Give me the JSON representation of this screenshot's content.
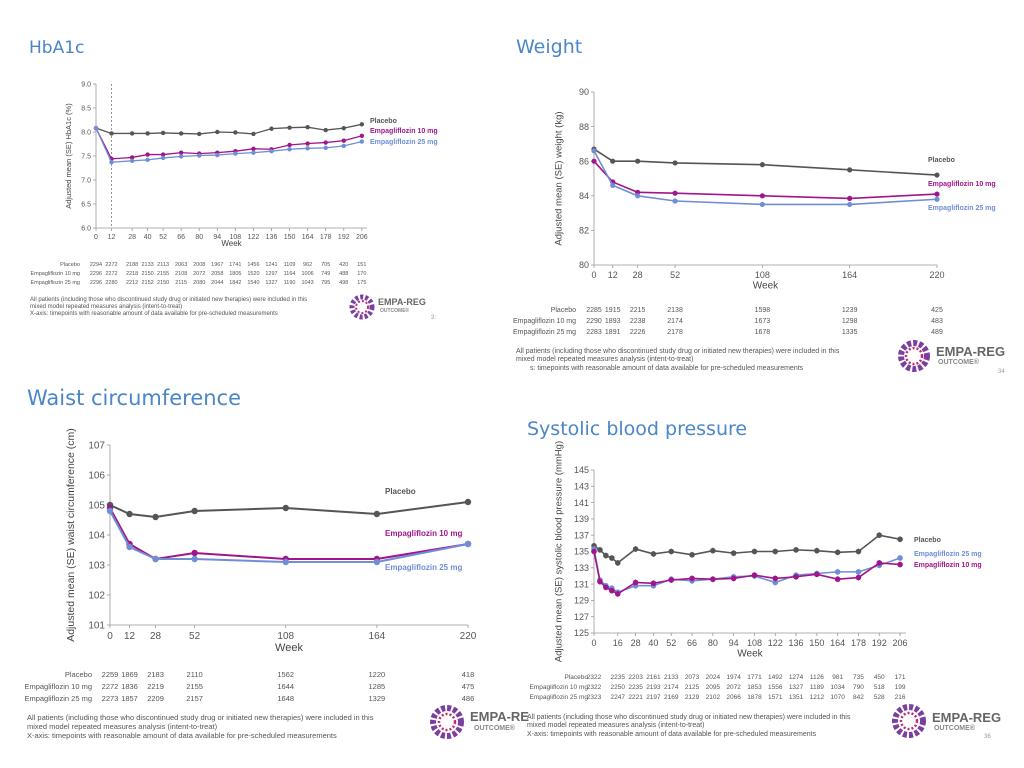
{
  "colors": {
    "placebo": "#555555",
    "empa10": "#a0158a",
    "empa25": "#6f8ed6",
    "title": "#4a86c8"
  },
  "chart_data": [
    {
      "id": "hba1c",
      "type": "line",
      "title": "HbA1c",
      "xlabel": "Week",
      "ylabel": "Adjusted mean (SE) HbA1c (%)",
      "xlim": [
        0,
        210
      ],
      "ylim": [
        6.0,
        9.0
      ],
      "yticks": [
        "6.0",
        "6.5",
        "7.0",
        "7.5",
        "8.0",
        "8.5",
        "9.0"
      ],
      "xticks": [
        "0",
        "12",
        "28",
        "40",
        "52",
        "66",
        "80",
        "94",
        "108",
        "122",
        "136",
        "150",
        "164",
        "178",
        "192",
        "206"
      ],
      "x": [
        0,
        12,
        28,
        40,
        52,
        66,
        80,
        94,
        108,
        122,
        136,
        150,
        164,
        178,
        192,
        206
      ],
      "series": [
        {
          "name": "Placebo",
          "values": [
            8.08,
            7.97,
            7.97,
            7.97,
            7.98,
            7.97,
            7.96,
            8.0,
            7.99,
            7.96,
            8.07,
            8.09,
            8.1,
            8.04,
            8.08,
            8.16
          ]
        },
        {
          "name": "Empagliflozin 10 mg",
          "values": [
            8.08,
            7.44,
            7.47,
            7.53,
            7.53,
            7.57,
            7.55,
            7.57,
            7.6,
            7.65,
            7.64,
            7.73,
            7.76,
            7.78,
            7.82,
            7.92
          ]
        },
        {
          "name": "Empagliflozin 25 mg",
          "values": [
            8.08,
            7.37,
            7.4,
            7.42,
            7.46,
            7.49,
            7.51,
            7.52,
            7.55,
            7.57,
            7.6,
            7.64,
            7.66,
            7.67,
            7.71,
            7.8
          ]
        }
      ],
      "n_table": {
        "labels": [
          "Placebo",
          "Empagliflozin 10 mg",
          "Empagliflozin 25 mg"
        ],
        "rows": [
          [
            "2294",
            "2272",
            "2188",
            "2133",
            "2113",
            "2063",
            "2008",
            "1967",
            "1741",
            "1456",
            "1241",
            "1109",
            "962",
            "705",
            "420",
            "151"
          ],
          [
            "2296",
            "2272",
            "2218",
            "2150",
            "2155",
            "2108",
            "2072",
            "2058",
            "1805",
            "1520",
            "1297",
            "1164",
            "1006",
            "749",
            "488",
            "170"
          ],
          [
            "2296",
            "2280",
            "2212",
            "2152",
            "2150",
            "2115",
            "2080",
            "2044",
            "1842",
            "1540",
            "1327",
            "1190",
            "1043",
            "795",
            "498",
            "175"
          ]
        ]
      },
      "notes": [
        "All patients (including those who discontinued study drug or initiated new therapies) were included in this",
        "mixed model repeated measures analysis (intent-to-treat)",
        "X-axis: timepoints with reasonable amount of data available for pre-scheduled measurements"
      ],
      "page_number": "3:"
    },
    {
      "id": "weight",
      "type": "line",
      "title": "Weight",
      "xlabel": "Week",
      "ylabel": "Adjusted mean (SE) weight (kg)",
      "xlim": [
        0,
        220
      ],
      "ylim": [
        80,
        90
      ],
      "yticks": [
        "80",
        "82",
        "84",
        "86",
        "88",
        "90"
      ],
      "xticks": [
        "0",
        "12",
        "28",
        "52",
        "108",
        "164",
        "220"
      ],
      "x": [
        0,
        12,
        28,
        52,
        108,
        164,
        220
      ],
      "series": [
        {
          "name": "Placebo",
          "values": [
            86.7,
            86.0,
            86.0,
            85.9,
            85.8,
            85.5,
            85.2
          ]
        },
        {
          "name": "Empagliflozin 10 mg",
          "values": [
            86.0,
            84.8,
            84.2,
            84.15,
            84.0,
            83.85,
            84.1
          ]
        },
        {
          "name": "Empagliflozin 25 mg",
          "values": [
            86.6,
            84.6,
            84.0,
            83.7,
            83.5,
            83.5,
            83.8
          ]
        }
      ],
      "n_table": {
        "labels": [
          "Placebo",
          "Empagliflozin 10 mg",
          "Empagliflozin 25 mg"
        ],
        "rows": [
          [
            "2285",
            "1915",
            "2215",
            "2138",
            "1598",
            "1239",
            "425"
          ],
          [
            "2290",
            "1893",
            "2238",
            "2174",
            "1673",
            "1298",
            "483"
          ],
          [
            "2283",
            "1891",
            "2226",
            "2178",
            "1678",
            "1335",
            "489"
          ]
        ]
      },
      "notes": [
        "All patients (including those who discontinued study drug or initiated new therapies) were included in this",
        "mixed model repeated measures analysis (intent-to-treat)",
        "s: timepoints with reasonable amount of data available for pre-scheduled measurements"
      ],
      "page_number": "34"
    },
    {
      "id": "waist",
      "type": "line",
      "title": "Waist circumference",
      "xlabel": "Week",
      "ylabel": "Adjusted mean (SE) waist circumference (cm)",
      "xlim": [
        0,
        220
      ],
      "ylim": [
        101,
        107
      ],
      "yticks": [
        "101",
        "102",
        "103",
        "104",
        "105",
        "106",
        "107"
      ],
      "xticks": [
        "0",
        "12",
        "28",
        "52",
        "108",
        "164",
        "220"
      ],
      "x": [
        0,
        12,
        28,
        52,
        108,
        164,
        220
      ],
      "series": [
        {
          "name": "Placebo",
          "values": [
            105.0,
            104.7,
            104.6,
            104.8,
            104.9,
            104.7,
            105.1
          ]
        },
        {
          "name": "Empagliflozin 10 mg",
          "values": [
            104.9,
            103.7,
            103.2,
            103.4,
            103.2,
            103.2,
            103.7
          ]
        },
        {
          "name": "Empagliflozin 25 mg",
          "values": [
            104.8,
            103.6,
            103.2,
            103.2,
            103.1,
            103.1,
            103.7
          ]
        }
      ],
      "n_table": {
        "labels": [
          "Placebo",
          "Empagliflozin 10 mg",
          "Empagliflozin 25 mg"
        ],
        "rows": [
          [
            "2259",
            "1869",
            "2183",
            "2110",
            "1562",
            "1220",
            "418"
          ],
          [
            "2272",
            "1836",
            "2219",
            "2155",
            "1644",
            "1285",
            "475"
          ],
          [
            "2273",
            "1857",
            "2209",
            "2157",
            "1648",
            "1329",
            "486"
          ]
        ]
      },
      "notes": [
        "All patients (including those who discontinued study drug or initiated new therapies) were included in this",
        "mixed model repeated measures analysis (intent-to-treat)",
        "X-axis: timepoints with reasonable amount of data available for pre-scheduled measurements"
      ],
      "page_number": ""
    },
    {
      "id": "sbp",
      "type": "line",
      "title": "Systolic blood pressure",
      "xlabel": "Week",
      "ylabel": "Adjusted mean (SE) systolic blood pressure (mmHg)",
      "xlim": [
        0,
        210
      ],
      "ylim": [
        125,
        145
      ],
      "yticks": [
        "125",
        "127",
        "129",
        "131",
        "133",
        "135",
        "137",
        "139",
        "141",
        "143",
        "145"
      ],
      "xticks": [
        "0",
        "16",
        "28",
        "40",
        "52",
        "66",
        "80",
        "94",
        "108",
        "122",
        "136",
        "150",
        "164",
        "178",
        "192",
        "206"
      ],
      "x": [
        0,
        4,
        8,
        12,
        16,
        28,
        40,
        52,
        66,
        80,
        94,
        108,
        122,
        136,
        150,
        164,
        178,
        192,
        206
      ],
      "series": [
        {
          "name": "Placebo",
          "values": [
            135.7,
            135.2,
            134.5,
            134.2,
            133.6,
            135.3,
            134.7,
            135.0,
            134.6,
            135.1,
            134.8,
            135.0,
            135.0,
            135.2,
            135.1,
            134.9,
            135.0,
            137.0,
            136.5
          ]
        },
        {
          "name": "Empagliflozin 25 mg",
          "values": [
            135.3,
            131.5,
            130.8,
            130.5,
            130.0,
            130.8,
            130.8,
            131.6,
            131.4,
            131.6,
            131.9,
            132.0,
            131.2,
            132.1,
            132.3,
            132.5,
            132.5,
            133.3,
            134.2
          ]
        },
        {
          "name": "Empagliflozin 10 mg",
          "values": [
            135.0,
            131.3,
            130.6,
            130.2,
            129.8,
            131.2,
            131.1,
            131.5,
            131.7,
            131.6,
            131.7,
            132.1,
            131.7,
            131.9,
            132.2,
            131.6,
            131.8,
            133.6,
            133.4
          ]
        }
      ],
      "n_table": {
        "labels": [
          "Placebo",
          "Empagliflozin 10 mg",
          "Empagliflozin 25 mg"
        ],
        "rows": [
          [
            "2322",
            "2235",
            "2203",
            "2161",
            "2133",
            "2073",
            "2024",
            "1974",
            "1771",
            "1492",
            "1274",
            "1126",
            "981",
            "735",
            "450",
            "171"
          ],
          [
            "2322",
            "2250",
            "2235",
            "2193",
            "2174",
            "2125",
            "2095",
            "2072",
            "1853",
            "1556",
            "1327",
            "1189",
            "1034",
            "790",
            "518",
            "199"
          ],
          [
            "2323",
            "2247",
            "2221",
            "2197",
            "2169",
            "2129",
            "2102",
            "2066",
            "1878",
            "1571",
            "1351",
            "1212",
            "1070",
            "842",
            "528",
            "216"
          ]
        ]
      },
      "notes": [
        "All patients (including those who discontinued study drug or initiated new therapies) were included in this",
        "mixed model repeated measures analysis (intent-to-treat)",
        "X-axis: timepoints with reasonable amount of data available for pre-scheduled measurements"
      ],
      "page_number": "36"
    }
  ],
  "logo": {
    "text_a": "EMPA-REG",
    "text_a_cut": "EMPA-RE",
    "sub": "OUTCOME®"
  }
}
